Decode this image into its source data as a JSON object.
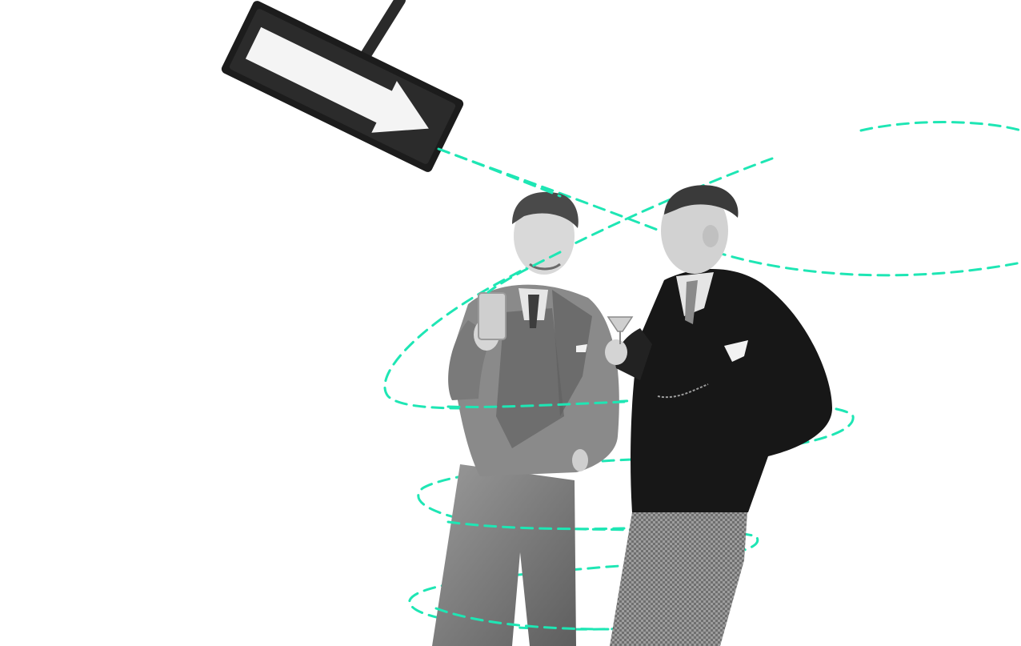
{
  "scene": {
    "description_alt": "",
    "colors": {
      "background": "#ffffff",
      "accent_dash": "#1ee6b4",
      "sign_dark": "#1c1c1c",
      "sign_light": "#f4f4f4",
      "suit_gray": "#7d7d7d",
      "suit_dark": "#171717",
      "skin": "#d9d9d9"
    },
    "icons": [
      "arrow-sign-icon"
    ]
  }
}
